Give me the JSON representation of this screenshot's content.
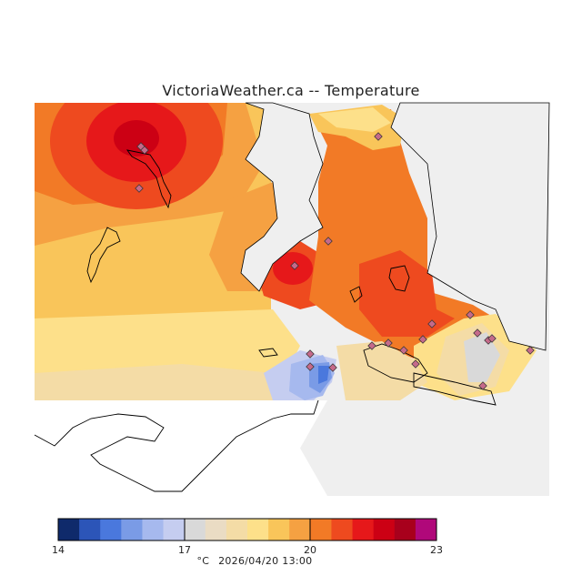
{
  "title": "VictoriaWeather.ca  --  Temperature",
  "legend": {
    "ticks": [
      "14",
      "17",
      "20",
      "23"
    ],
    "unit": "°C",
    "timestamp": "2026/04/20  13:00",
    "colors": [
      "#0f2a6b",
      "#2c55b8",
      "#4a78dd",
      "#7a9be6",
      "#a6b9ee",
      "#c5cdf0",
      "#d9d9d9",
      "#eadcc4",
      "#f4dca6",
      "#fde08a",
      "#f9c55a",
      "#f5a142",
      "#f27a26",
      "#ee4a1f",
      "#e6181a",
      "#cc0014",
      "#a8001c",
      "#b0087a"
    ]
  },
  "stations": 20
}
